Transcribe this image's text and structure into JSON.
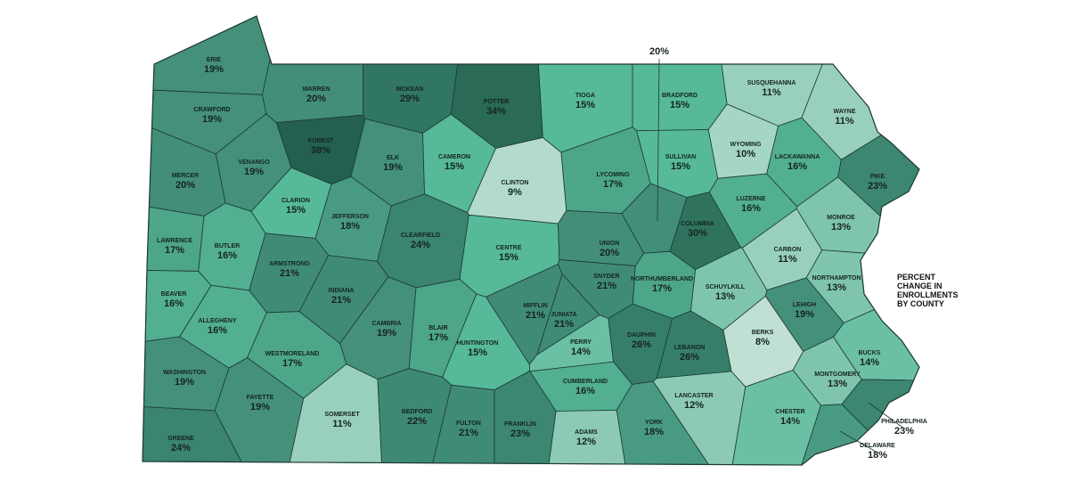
{
  "title": "PERCENT CHANGE IN ENROLLMENTS BY COUNTY",
  "counties": [
    {
      "name": "ERIE",
      "value": 19,
      "label": "19%"
    },
    {
      "name": "CRAWFORD",
      "value": 19,
      "label": "19%"
    },
    {
      "name": "WARREN",
      "value": 20,
      "label": "20%"
    },
    {
      "name": "MCKEAN",
      "value": 29,
      "label": "29%"
    },
    {
      "name": "POTTER",
      "value": 34,
      "label": "34%"
    },
    {
      "name": "TIOGA",
      "value": 15,
      "label": "15%"
    },
    {
      "name": "BRADFORD",
      "value": 15,
      "label": "15%"
    },
    {
      "name": "SUSQUEHANNA",
      "value": 11,
      "label": "11%"
    },
    {
      "name": "WAYNE",
      "value": 11,
      "label": "11%"
    },
    {
      "name": "FOREST",
      "value": 38,
      "label": "38%"
    },
    {
      "name": "VENANGO",
      "value": 19,
      "label": "19%"
    },
    {
      "name": "ELK",
      "value": 19,
      "label": "19%"
    },
    {
      "name": "CAMERON",
      "value": 15,
      "label": "15%"
    },
    {
      "name": "CLINTON",
      "value": 9,
      "label": "9%"
    },
    {
      "name": "LYCOMING",
      "value": 17,
      "label": "17%"
    },
    {
      "name": "SULLIVAN",
      "value": 15,
      "label": "15%"
    },
    {
      "name": "WYOMING",
      "value": 10,
      "label": "10%"
    },
    {
      "name": "LACKAWANNA",
      "value": 16,
      "label": "16%"
    },
    {
      "name": "PIKE",
      "value": 23,
      "label": "23%"
    },
    {
      "name": "MERCER",
      "value": 20,
      "label": "20%"
    },
    {
      "name": "CLARION",
      "value": 15,
      "label": "15%"
    },
    {
      "name": "JEFFERSON",
      "value": 18,
      "label": "18%"
    },
    {
      "name": "CLEARFIELD",
      "value": 24,
      "label": "24%"
    },
    {
      "name": "CENTRE",
      "value": 15,
      "label": "15%"
    },
    {
      "name": "UNION",
      "value": 20,
      "label": "20%"
    },
    {
      "name": "COLUMBIA",
      "value": 30,
      "label": "30%"
    },
    {
      "name": "LUZERNE",
      "value": 16,
      "label": "16%"
    },
    {
      "name": "MONROE",
      "value": 13,
      "label": "13%"
    },
    {
      "name": "CARBON",
      "value": 11,
      "label": "11%"
    },
    {
      "name": "LAWRENCE",
      "value": 17,
      "label": "17%"
    },
    {
      "name": "BUTLER",
      "value": 16,
      "label": "16%"
    },
    {
      "name": "ARMSTRONG",
      "value": 21,
      "label": "21%"
    },
    {
      "name": "BEAVER",
      "value": 16,
      "label": "16%"
    },
    {
      "name": "INDIANA",
      "value": 21,
      "label": "21%"
    },
    {
      "name": "SNYDER",
      "value": 21,
      "label": "21%"
    },
    {
      "name": "NORTHUMBERLAND",
      "value": 17,
      "label": "17%"
    },
    {
      "name": "SCHUYLKILL",
      "value": 13,
      "label": "13%"
    },
    {
      "name": "NORTHAMPTON",
      "value": 13,
      "label": "13%"
    },
    {
      "name": "LEHIGH",
      "value": 19,
      "label": "19%"
    },
    {
      "name": "MIFFLIN",
      "value": 21,
      "label": "21%"
    },
    {
      "name": "JUNIATA",
      "value": 21,
      "label": "21%"
    },
    {
      "name": "ALLEGHENY",
      "value": 16,
      "label": "16%"
    },
    {
      "name": "CAMBRIA",
      "value": 19,
      "label": "19%"
    },
    {
      "name": "BLAIR",
      "value": 17,
      "label": "17%"
    },
    {
      "name": "WESTMORELAND",
      "value": 17,
      "label": "17%"
    },
    {
      "name": "HUNTINGTON",
      "value": 15,
      "label": "15%"
    },
    {
      "name": "PERRY",
      "value": 14,
      "label": "14%"
    },
    {
      "name": "DAUPHIN",
      "value": 26,
      "label": "26%"
    },
    {
      "name": "LEBANON",
      "value": 26,
      "label": "26%"
    },
    {
      "name": "BERKS",
      "value": 8,
      "label": "8%"
    },
    {
      "name": "BUCKS",
      "value": 14,
      "label": "14%"
    },
    {
      "name": "MONTGOMERY",
      "value": 13,
      "label": "13%"
    },
    {
      "name": "WASHINGTON",
      "value": 19,
      "label": "19%"
    },
    {
      "name": "CUMBERLAND",
      "value": 16,
      "label": "16%"
    },
    {
      "name": "LANCASTER",
      "value": 12,
      "label": "12%"
    },
    {
      "name": "CHESTER",
      "value": 14,
      "label": "14%"
    },
    {
      "name": "PHILADELPHIA",
      "value": 23,
      "label": "23%"
    },
    {
      "name": "DELAWARE",
      "value": 18,
      "label": "18%"
    },
    {
      "name": "FAYETTE",
      "value": 19,
      "label": "19%"
    },
    {
      "name": "SOMERSET",
      "value": 11,
      "label": "11%"
    },
    {
      "name": "BEDFORD",
      "value": 22,
      "label": "22%"
    },
    {
      "name": "FULTON",
      "value": 21,
      "label": "21%"
    },
    {
      "name": "FRANKLIN",
      "value": 23,
      "label": "23%"
    },
    {
      "name": "ADAMS",
      "value": 12,
      "label": "12%"
    },
    {
      "name": "YORK",
      "value": 18,
      "label": "18%"
    },
    {
      "name": "GREENE",
      "value": 24,
      "label": "24%"
    },
    {
      "value": 20,
      "label": "20%"
    }
  ]
}
